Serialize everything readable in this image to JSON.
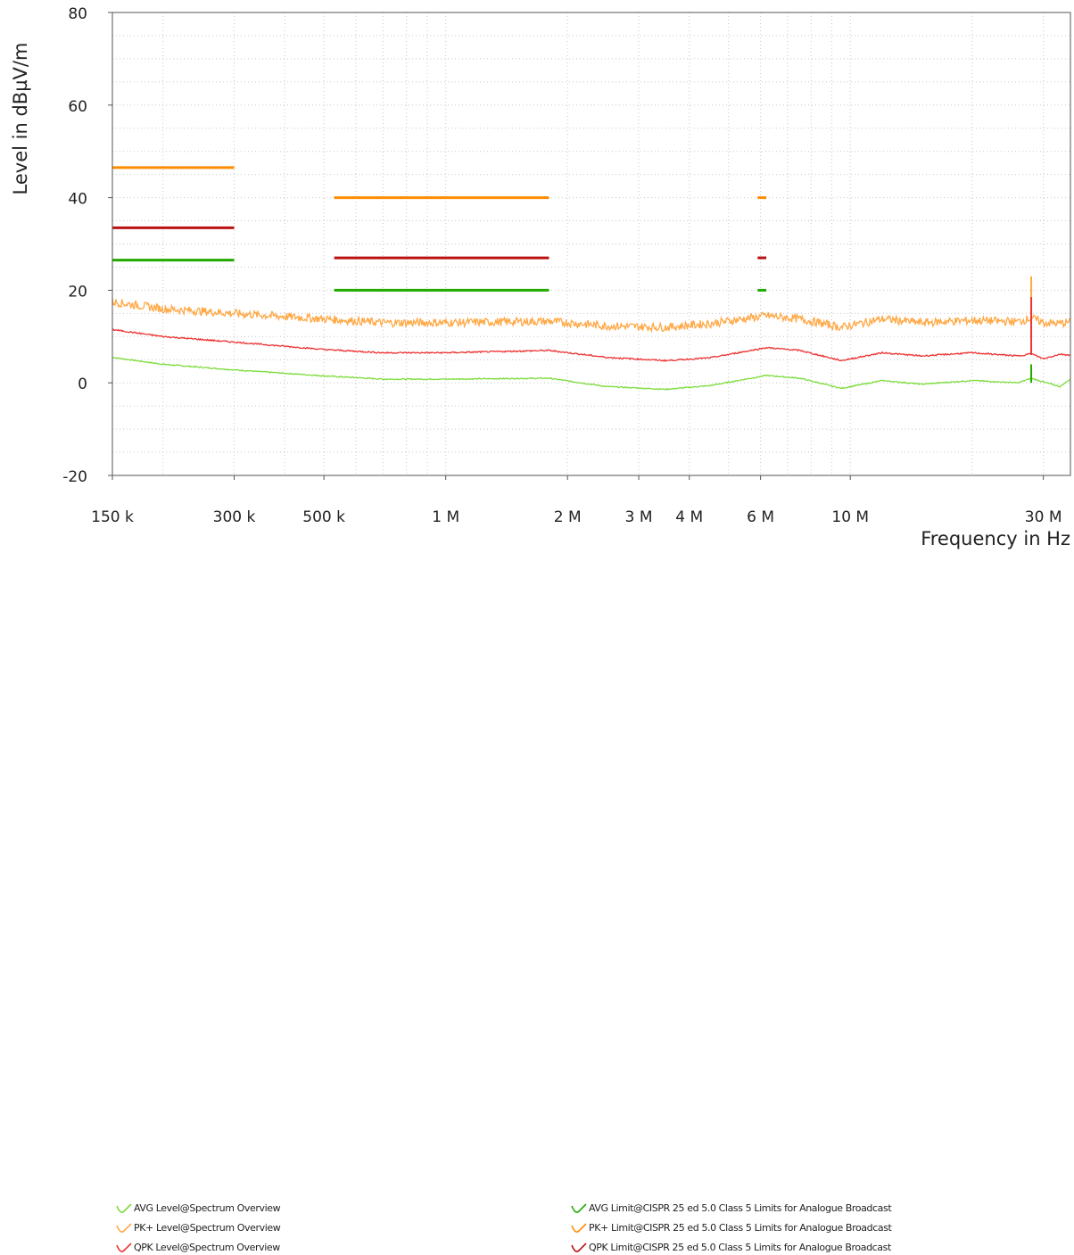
{
  "chart_data": {
    "type": "line",
    "xlabel": "Frequency in Hz",
    "ylabel": "Level in dBµV/m",
    "x_scale": "log",
    "xlim": [
      150000,
      35000000
    ],
    "ylim": [
      -20,
      80
    ],
    "grid": true,
    "x_ticks": [
      {
        "value": 150000,
        "label": "150 k"
      },
      {
        "value": 300000,
        "label": "300 k"
      },
      {
        "value": 500000,
        "label": "500 k"
      },
      {
        "value": 1000000,
        "label": "1 M"
      },
      {
        "value": 2000000,
        "label": "2 M"
      },
      {
        "value": 3000000,
        "label": "3 M"
      },
      {
        "value": 4000000,
        "label": "4 M"
      },
      {
        "value": 6000000,
        "label": "6 M"
      },
      {
        "value": 10000000,
        "label": "10 M"
      },
      {
        "value": 30000000,
        "label": "30 M"
      }
    ],
    "y_ticks": [
      {
        "value": -20,
        "label": "-20"
      },
      {
        "value": 0,
        "label": "0"
      },
      {
        "value": 20,
        "label": "20"
      },
      {
        "value": 40,
        "label": "40"
      },
      {
        "value": 60,
        "label": "60"
      },
      {
        "value": 80,
        "label": "80"
      }
    ],
    "series": [
      {
        "name": "AVG Level@Spectrum Overview",
        "color": "#7ddc3c",
        "x": [
          150000,
          200000,
          300000,
          500000,
          700000,
          1000000,
          1800000,
          2500000,
          3500000,
          4500000,
          6200000,
          7500000,
          9500000,
          12000000,
          15000000,
          20000000,
          26000000,
          28000000,
          30000000,
          33000000,
          35000000
        ],
        "y": [
          5.5,
          4.0,
          2.8,
          1.5,
          0.8,
          0.8,
          1.0,
          -0.8,
          -1.4,
          -0.6,
          1.6,
          1.0,
          -1.2,
          0.5,
          -0.3,
          0.5,
          0.0,
          1.0,
          0.2,
          -0.8,
          0.8
        ]
      },
      {
        "name": "PK+ Level@Spectrum Overview",
        "color": "#ffa845",
        "x": [
          150000,
          200000,
          300000,
          500000,
          700000,
          1000000,
          1800000,
          2500000,
          3500000,
          4500000,
          6200000,
          7500000,
          9500000,
          12000000,
          15000000,
          20000000,
          26000000,
          28000000,
          30000000,
          33000000,
          35000000
        ],
        "y": [
          17.5,
          16.0,
          15.0,
          13.8,
          13.0,
          13.0,
          13.3,
          12.3,
          12.0,
          12.8,
          14.5,
          13.8,
          12.0,
          13.8,
          13.0,
          13.5,
          13.2,
          14.0,
          13.0,
          12.8,
          13.2
        ]
      },
      {
        "name": "QPK Level@Spectrum Overview",
        "color": "#ee3333",
        "x": [
          150000,
          200000,
          300000,
          500000,
          700000,
          1000000,
          1800000,
          2500000,
          3500000,
          4500000,
          6200000,
          7500000,
          9500000,
          12000000,
          15000000,
          20000000,
          26000000,
          28000000,
          30000000,
          33000000,
          35000000
        ],
        "y": [
          11.5,
          10.0,
          8.8,
          7.2,
          6.5,
          6.5,
          7.0,
          5.5,
          4.8,
          5.4,
          7.6,
          7.0,
          4.8,
          6.5,
          5.8,
          6.5,
          5.8,
          6.3,
          5.2,
          6.2,
          6.0
        ]
      },
      {
        "name": "AVG Limit@CISPR 25 ed 5.0 Class 5 Limits for Analogue Broadcast",
        "color": "#22aa00",
        "segments": [
          {
            "x": [
              150000,
              300000
            ],
            "y": 26.5
          },
          {
            "x": [
              530000,
              1800000
            ],
            "y": 20
          },
          {
            "x": [
              5900000,
              6200000
            ],
            "y": 20
          }
        ]
      },
      {
        "name": "PK+ Limit@CISPR 25 ed 5.0 Class 5 Limits for Analogue Broadcast",
        "color": "#ff8c00",
        "segments": [
          {
            "x": [
              150000,
              300000
            ],
            "y": 46.5
          },
          {
            "x": [
              530000,
              1800000
            ],
            "y": 40
          },
          {
            "x": [
              5900000,
              6200000
            ],
            "y": 40
          }
        ]
      },
      {
        "name": "QPK Limit@CISPR 25 ed 5.0 Class 5 Limits for Analogue Broadcast",
        "color": "#bb1111",
        "segments": [
          {
            "x": [
              150000,
              300000
            ],
            "y": 33.5
          },
          {
            "x": [
              530000,
              1800000
            ],
            "y": 27
          },
          {
            "x": [
              5900000,
              6200000
            ],
            "y": 27
          }
        ]
      }
    ],
    "spikes": [
      {
        "x": 28000000,
        "series": "PK+ Level@Spectrum Overview",
        "y_top": 23,
        "y_base": 13,
        "color": "#ffa845"
      },
      {
        "x": 28000000,
        "series": "QPK Level@Spectrum Overview",
        "y_top": 18.5,
        "y_base": 6,
        "color": "#ee3333"
      },
      {
        "x": 28000000,
        "series": "AVG Level@Spectrum Overview",
        "y_top": 4,
        "y_base": 0,
        "color": "#22aa00"
      }
    ]
  },
  "legend": {
    "left": [
      {
        "label": "AVG Level@Spectrum Overview",
        "color": "#7ddc3c"
      },
      {
        "label": "PK+ Level@Spectrum Overview",
        "color": "#ffa845"
      },
      {
        "label": "QPK Level@Spectrum Overview",
        "color": "#ee3333"
      }
    ],
    "right": [
      {
        "label": "AVG Limit@CISPR 25 ed 5.0 Class 5 Limits for Analogue Broadcast",
        "color": "#22aa00"
      },
      {
        "label": "PK+ Limit@CISPR 25 ed 5.0 Class 5 Limits for Analogue Broadcast",
        "color": "#ff8c00"
      },
      {
        "label": "QPK Limit@CISPR 25 ed 5.0 Class 5 Limits for Analogue Broadcast",
        "color": "#bb1111"
      }
    ]
  }
}
